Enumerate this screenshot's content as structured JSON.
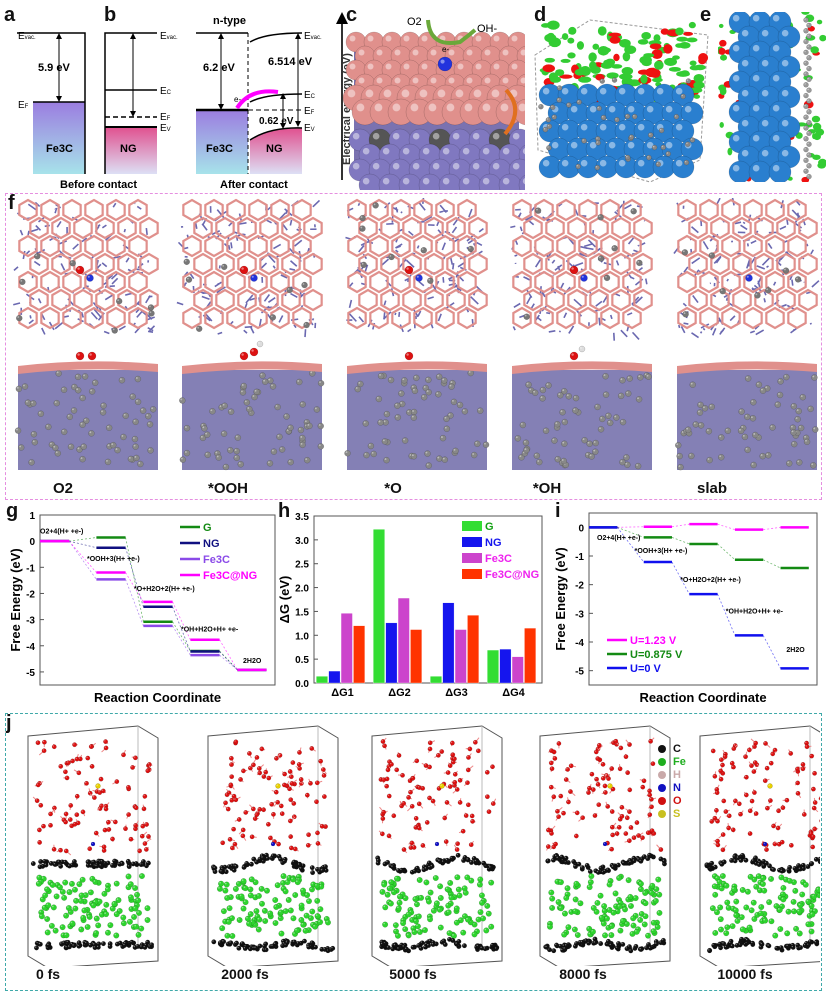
{
  "panels": {
    "a": "a",
    "b": "b",
    "c": "c",
    "d": "d",
    "e": "e",
    "f": "f",
    "g": "g",
    "h": "h",
    "i": "i",
    "j": "j"
  },
  "panel_a": {
    "evac": "E",
    "evac_sub": "vac.",
    "ef": "E",
    "ef_sub": "F",
    "ec": "E",
    "ec_sub": "C",
    "ev": "E",
    "ev_sub": "V",
    "gap": "5.9 eV",
    "left": "Fe3C",
    "right": "NG",
    "caption": "Before contact"
  },
  "panel_b": {
    "title": "n-type",
    "left_gap": "6.2 eV",
    "right_gap": "6.514 eV",
    "band": "0.62 eV",
    "electron": "e-",
    "left": "Fe3C",
    "right": "NG",
    "caption": "After contact"
  },
  "panel_c": {
    "axis": "Electrical energy (eV)",
    "o2": "O2",
    "oh": "OH-",
    "electron": "e-"
  },
  "panel_f": {
    "labels": [
      "O2",
      "*OOH",
      "*O",
      "*OH",
      "slab"
    ],
    "border_color": "#e58ee0"
  },
  "panel_j": {
    "labels": [
      "0 fs",
      "2000 fs",
      "5000 fs",
      "8000 fs",
      "10000 fs"
    ],
    "legend": [
      {
        "el": "C",
        "color": "#111111"
      },
      {
        "el": "Fe",
        "color": "#1fae1f"
      },
      {
        "el": "H",
        "color": "#c9a9a9"
      },
      {
        "el": "N",
        "color": "#1010c0"
      },
      {
        "el": "O",
        "color": "#d01010"
      },
      {
        "el": "S",
        "color": "#c8c020"
      }
    ],
    "border_color": "#3fa9a9"
  },
  "chart_data": [
    {
      "id": "g",
      "type": "line",
      "xlabel": "Reaction Coordinate",
      "ylabel": "Free Energy (eV)",
      "ylim": [
        -5.5,
        1
      ],
      "yticks": [
        1,
        0,
        -1,
        -2,
        -3,
        -4,
        -5
      ],
      "steps": [
        "O2+4(H+ +e-)",
        "*OOH+3(H+ +e-)",
        "*O+H2O+2(H+ +e-)",
        "*OH+H2O+H+ +e-",
        "2H2O"
      ],
      "series": [
        {
          "name": "G",
          "color": "#138a13",
          "values": [
            0,
            0.14,
            -3.08,
            -4.2,
            -4.92
          ]
        },
        {
          "name": "NG",
          "color": "#101080",
          "values": [
            0,
            -0.25,
            -2.51,
            -4.22,
            -4.92
          ]
        },
        {
          "name": "Fe3C",
          "color": "#8a4ae8",
          "values": [
            0,
            -1.46,
            -3.24,
            -4.36,
            -4.92
          ]
        },
        {
          "name": "Fe3C@NG",
          "color": "#ff00ff",
          "values": [
            0,
            -1.2,
            -2.32,
            -3.77,
            -4.92
          ]
        }
      ],
      "legend": "top-right"
    },
    {
      "id": "h",
      "type": "bar",
      "xlabel": "",
      "ylabel": "ΔG (eV)",
      "ylim": [
        0,
        3.5
      ],
      "yticks": [
        0,
        0.5,
        1.0,
        1.5,
        2.0,
        2.5,
        3.0,
        3.5
      ],
      "categories": [
        "ΔG1",
        "ΔG2",
        "ΔG3",
        "ΔG4"
      ],
      "series": [
        {
          "name": "G",
          "color": "#33dd33",
          "values": [
            0.14,
            3.22,
            0.14,
            0.69
          ]
        },
        {
          "name": "NG",
          "color": "#1515ee",
          "values": [
            0.25,
            1.26,
            1.68,
            0.71
          ]
        },
        {
          "name": "Fe3C",
          "color": "#cc44cc",
          "values": [
            1.46,
            1.78,
            1.12,
            0.55
          ]
        },
        {
          "name": "Fe3C@NG",
          "color": "#ff3300",
          "values": [
            1.2,
            1.12,
            1.42,
            1.15
          ]
        }
      ],
      "legend": "top-right"
    },
    {
      "id": "i",
      "type": "line",
      "xlabel": "Reaction Coordinate",
      "ylabel": "Free Energy (eV)",
      "ylim": [
        -5.5,
        0.5
      ],
      "yticks": [
        0,
        -1,
        -2,
        -3,
        -4,
        -5
      ],
      "steps": [
        "O2+4(H+ +e-)",
        "*OOH+3(H+ +e-)",
        "*O+H2O+2(H+ +e-)",
        "*OH+H2O+H+ +e-",
        "2H2O"
      ],
      "series": [
        {
          "name": "U=1.23 V",
          "color": "#ff00ff",
          "values": [
            0,
            0.02,
            0.11,
            -0.08,
            0
          ]
        },
        {
          "name": "U=0.875 V",
          "color": "#138a13",
          "values": [
            0,
            -0.35,
            -0.58,
            -1.13,
            -1.42
          ]
        },
        {
          "name": "U=0 V",
          "color": "#1010ee",
          "values": [
            0,
            -1.21,
            -2.33,
            -3.77,
            -4.92
          ]
        }
      ],
      "legend": "bottom-left"
    }
  ]
}
